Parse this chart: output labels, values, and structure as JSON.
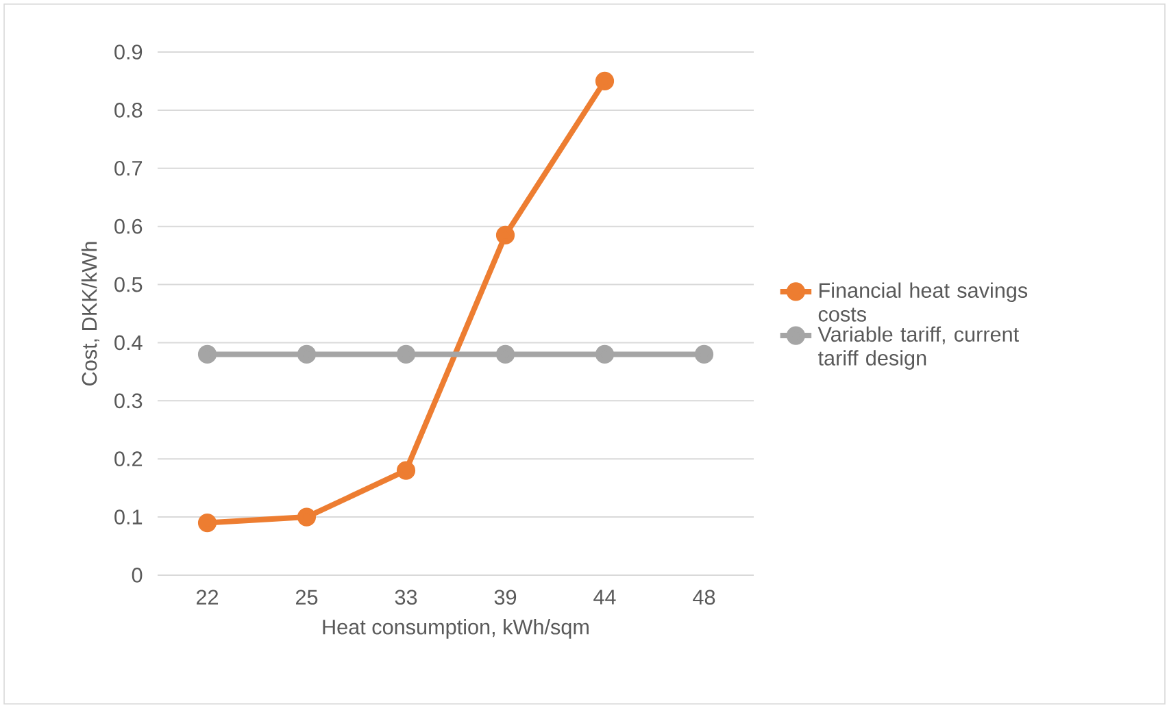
{
  "chart_data": {
    "type": "line",
    "xlabel": "Heat consumption, kWh/sqm",
    "ylabel": "Cost, DKK/kWh",
    "categories": [
      "22",
      "25",
      "33",
      "39",
      "44",
      "48"
    ],
    "series": [
      {
        "name": "Financial heat savings costs",
        "color": "#ed7d31",
        "values": [
          0.09,
          0.1,
          0.18,
          0.585,
          0.85,
          null
        ]
      },
      {
        "name": "Variable tariff, current tariff design",
        "color": "#a5a5a5",
        "values": [
          0.38,
          0.38,
          0.38,
          0.38,
          0.38,
          0.38
        ]
      }
    ],
    "ylim": [
      0,
      0.9
    ],
    "yticks": [
      0,
      0.1,
      0.2,
      0.3,
      0.4,
      0.5,
      0.6,
      0.7,
      0.8,
      0.9
    ],
    "grid": "y",
    "legend": "right",
    "marker": "circle",
    "line_style": "solid"
  }
}
